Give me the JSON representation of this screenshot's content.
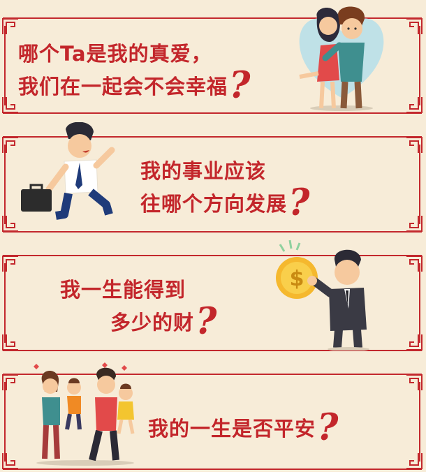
{
  "colors": {
    "accent": "#c3282d",
    "background": "#f7ecd8"
  },
  "panels": [
    {
      "line1": "哪个Ta是我的真爱，",
      "line2": "我们在一起会不会幸福",
      "mark": "?",
      "illustration": "couple-hugging"
    },
    {
      "line1": "我的事业应该",
      "line2": "往哪个方向发展",
      "mark": "?",
      "illustration": "running-businessman"
    },
    {
      "line1": "我一生能得到",
      "line2": "多少的财",
      "mark": "?",
      "illustration": "man-holding-dollar-coin"
    },
    {
      "line1": "我的一生是否平安",
      "line2": "",
      "mark": "?",
      "illustration": "happy-family"
    }
  ]
}
